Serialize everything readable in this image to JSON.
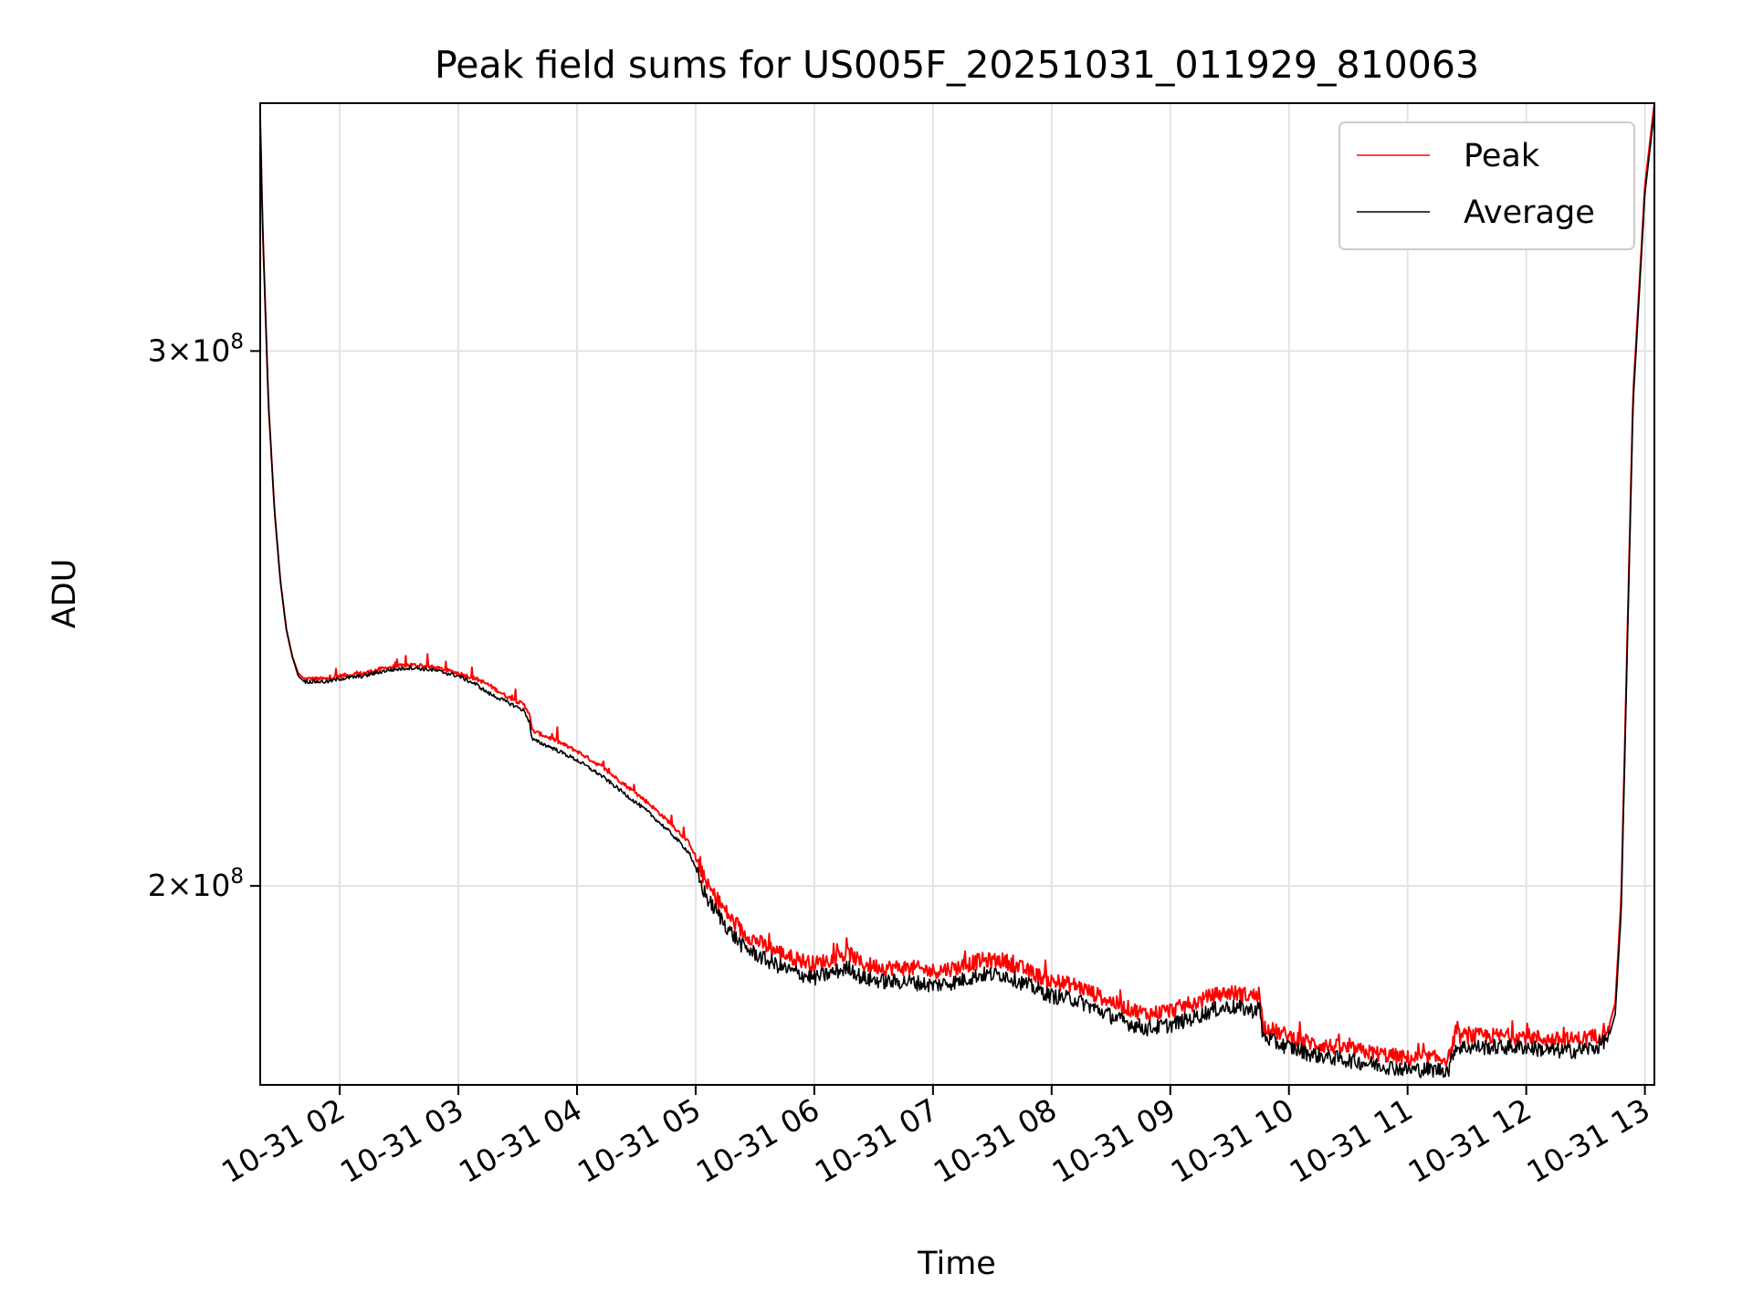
{
  "chart_data": {
    "type": "line",
    "title": "Peak field sums for US005F_20251031_011929_810063",
    "xlabel": "Time",
    "ylabel": "ADU",
    "yscale": "log",
    "xlim": [
      1.33,
      13.08
    ],
    "ylim": [
      172000000,
      362000000
    ],
    "grid": true,
    "legend_position": "top-right",
    "x_ticks": [
      {
        "value": 2,
        "label": "10-31 02"
      },
      {
        "value": 3,
        "label": "10-31 03"
      },
      {
        "value": 4,
        "label": "10-31 04"
      },
      {
        "value": 5,
        "label": "10-31 05"
      },
      {
        "value": 6,
        "label": "10-31 06"
      },
      {
        "value": 7,
        "label": "10-31 07"
      },
      {
        "value": 8,
        "label": "10-31 08"
      },
      {
        "value": 9,
        "label": "10-31 09"
      },
      {
        "value": 10,
        "label": "10-31 10"
      },
      {
        "value": 11,
        "label": "10-31 11"
      },
      {
        "value": 12,
        "label": "10-31 12"
      },
      {
        "value": 13,
        "label": "10-31 13"
      }
    ],
    "y_ticks": [
      {
        "value": 200000000,
        "mantissa": "2",
        "base": "10",
        "exponent": "8"
      },
      {
        "value": 300000000,
        "mantissa": "3",
        "base": "10",
        "exponent": "8"
      }
    ],
    "x_unit": "hour of 2025-10-31",
    "series": [
      {
        "name": "Peak",
        "color": "#ff0000",
        "x": [
          1.33,
          1.35,
          1.4,
          1.45,
          1.5,
          1.55,
          1.6,
          1.65,
          1.7,
          1.8,
          1.9,
          2.0,
          2.2,
          2.4,
          2.6,
          2.8,
          3.0,
          3.15,
          3.25,
          3.4,
          3.55,
          3.6,
          3.62,
          3.8,
          4.0,
          4.2,
          4.4,
          4.6,
          4.8,
          4.95,
          5.0,
          5.05,
          5.1,
          5.2,
          5.3,
          5.4,
          5.45,
          5.6,
          5.8,
          6.0,
          6.1,
          6.3,
          6.4,
          6.6,
          6.8,
          7.0,
          7.2,
          7.4,
          7.6,
          7.8,
          8.0,
          8.2,
          8.4,
          8.6,
          8.8,
          9.0,
          9.2,
          9.35,
          9.5,
          9.7,
          9.75,
          9.78,
          9.9,
          10.0,
          10.2,
          10.4,
          10.6,
          10.8,
          11.0,
          11.2,
          11.35,
          11.38,
          11.4,
          11.6,
          11.8,
          12.0,
          12.2,
          12.4,
          12.6,
          12.7,
          12.75,
          12.8,
          12.85,
          12.9,
          13.0,
          13.08
        ],
        "values": [
          358000000,
          330000000,
          288000000,
          266000000,
          252000000,
          243000000,
          238000000,
          235000000,
          234000000,
          234000000,
          234000000,
          234500000,
          235000000,
          236000000,
          236500000,
          236000000,
          235000000,
          234000000,
          233000000,
          231000000,
          229500000,
          228000000,
          225000000,
          223500000,
          221500000,
          219000000,
          216000000,
          213000000,
          209500000,
          206500000,
          204500000,
          202000000,
          200000000,
          197500000,
          195000000,
          193000000,
          192500000,
          191000000,
          189500000,
          188500000,
          189000000,
          190000000,
          188500000,
          188000000,
          188000000,
          187500000,
          188000000,
          189000000,
          189000000,
          187500000,
          186000000,
          185500000,
          184000000,
          182500000,
          181500000,
          182000000,
          183000000,
          184000000,
          184500000,
          184000000,
          184500000,
          180000000,
          179000000,
          178500000,
          177500000,
          177000000,
          176500000,
          176000000,
          175500000,
          175500000,
          175500000,
          177500000,
          178500000,
          178500000,
          178500000,
          178500000,
          178000000,
          178000000,
          178500000,
          180000000,
          183000000,
          198000000,
          240000000,
          290000000,
          340000000,
          362000000
        ]
      },
      {
        "name": "Average",
        "color": "#000000",
        "x": [
          1.33,
          1.35,
          1.4,
          1.45,
          1.5,
          1.55,
          1.6,
          1.65,
          1.7,
          1.8,
          1.9,
          2.0,
          2.2,
          2.4,
          2.6,
          2.8,
          3.0,
          3.15,
          3.25,
          3.4,
          3.55,
          3.6,
          3.62,
          3.8,
          4.0,
          4.2,
          4.4,
          4.6,
          4.8,
          4.95,
          5.0,
          5.05,
          5.1,
          5.2,
          5.3,
          5.4,
          5.45,
          5.6,
          5.8,
          6.0,
          6.1,
          6.3,
          6.4,
          6.6,
          6.8,
          7.0,
          7.2,
          7.4,
          7.6,
          7.8,
          8.0,
          8.2,
          8.4,
          8.6,
          8.8,
          9.0,
          9.2,
          9.35,
          9.5,
          9.7,
          9.75,
          9.78,
          9.9,
          10.0,
          10.2,
          10.4,
          10.6,
          10.8,
          11.0,
          11.2,
          11.35,
          11.38,
          11.4,
          11.6,
          11.8,
          12.0,
          12.2,
          12.4,
          12.6,
          12.7,
          12.75,
          12.8,
          12.85,
          12.9,
          13.0,
          13.08
        ],
        "values": [
          358000000,
          330000000,
          288000000,
          266000000,
          252000000,
          243000000,
          238000000,
          234500000,
          233500000,
          233500000,
          233500000,
          234000000,
          234500000,
          235500000,
          236000000,
          235500000,
          234500000,
          233000000,
          231500000,
          230000000,
          228500000,
          226500000,
          223500000,
          222000000,
          220000000,
          217500000,
          214500000,
          211500000,
          208000000,
          205000000,
          202500000,
          200000000,
          198000000,
          195500000,
          193000000,
          191000000,
          190500000,
          189000000,
          187500000,
          186500000,
          187000000,
          188000000,
          186500000,
          186000000,
          186000000,
          185500000,
          186000000,
          187000000,
          187000000,
          185500000,
          184000000,
          183500000,
          182000000,
          180500000,
          179500000,
          180000000,
          181000000,
          182000000,
          182500000,
          182000000,
          182500000,
          178500000,
          177500000,
          177000000,
          176000000,
          175500000,
          175000000,
          174500000,
          174000000,
          174000000,
          174000000,
          176000000,
          177000000,
          177000000,
          177000000,
          177000000,
          176500000,
          176500000,
          177000000,
          178500000,
          181500000,
          196000000,
          238000000,
          288000000,
          338000000,
          360000000
        ]
      }
    ]
  }
}
